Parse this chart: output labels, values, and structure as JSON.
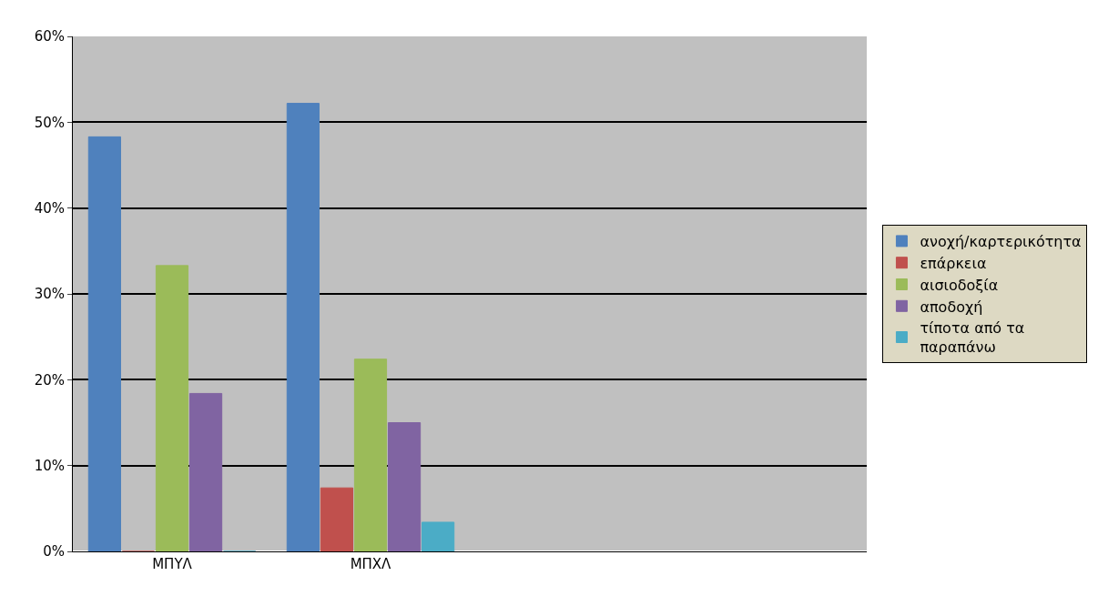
{
  "chart_data": {
    "type": "bar",
    "categories": [
      "ΜΠΥΛ",
      "ΜΠΧΛ",
      null,
      null
    ],
    "series": [
      {
        "name": "ανοχή/καρτερικότητα",
        "color": "#4f81bd",
        "values": [
          48.3,
          52.2,
          null,
          null
        ]
      },
      {
        "name": "επάρκεια",
        "color": "#c0504d",
        "values": [
          0,
          7.4,
          null,
          null
        ]
      },
      {
        "name": "αισιοδοξία",
        "color": "#9bbb59",
        "values": [
          33.3,
          22.4,
          null,
          null
        ]
      },
      {
        "name": "αποδοχή",
        "color": "#8064a2",
        "values": [
          18.4,
          15,
          null,
          null
        ]
      },
      {
        "name": "τίποτα από τα παραπάνω",
        "color": "#4bacc6",
        "values": [
          0,
          3.4,
          null,
          null
        ]
      }
    ],
    "ylim": [
      0,
      60
    ],
    "yticks": [
      {
        "value": 0,
        "label": "0%"
      },
      {
        "value": 10,
        "label": "10%"
      },
      {
        "value": 20,
        "label": "20%"
      },
      {
        "value": 30,
        "label": "30%"
      },
      {
        "value": 40,
        "label": "40%"
      },
      {
        "value": 50,
        "label": "50%"
      },
      {
        "value": 60,
        "label": "60%"
      }
    ],
    "grid": "y",
    "legend": "right"
  }
}
